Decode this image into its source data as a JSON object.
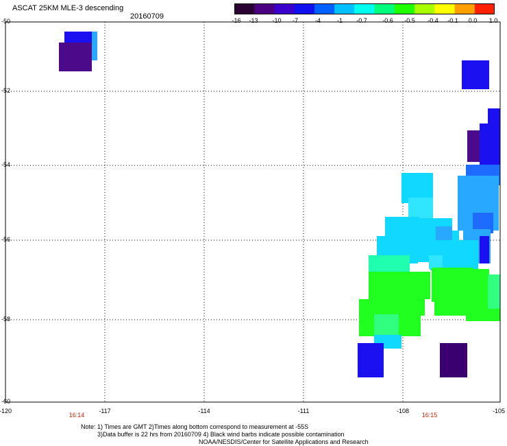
{
  "header": {
    "title": "ASCAT 25KM MLE-3 descending",
    "date": "20160709"
  },
  "colorbar": {
    "tick_labels": [
      "-16",
      "-13",
      "-10",
      "-7",
      "-4",
      "-1",
      "-0.7",
      "-0.6",
      "-0.5",
      "-0.4",
      "-0.1",
      "0.0",
      "1.0"
    ],
    "colors": [
      "#2a0033",
      "#4b0082",
      "#3a00cc",
      "#1010ee",
      "#0060ff",
      "#00c0ff",
      "#00ffee",
      "#00ff7a",
      "#20ff00",
      "#a8ff00",
      "#ffff00",
      "#ffa000",
      "#ff2000"
    ]
  },
  "axes": {
    "lat_labels": [
      "-50",
      "-52",
      "-54",
      "-56",
      "-58",
      "-60"
    ],
    "lon_labels": [
      "-120",
      "-117",
      "-114",
      "-111",
      "-108",
      "-105"
    ],
    "time_labels": [
      "16:14",
      "16:15"
    ]
  },
  "swath_colors": {
    "indigo": "#4a0a8a",
    "dark_indigo": "#3b0070",
    "blue": "#1a10f0",
    "mid_blue": "#1e6bff",
    "light_blue": "#28a8ff",
    "cyan": "#10d8ff",
    "pale_cyan": "#30e6ff",
    "aqua_green": "#20ffb0",
    "green": "#20ff20",
    "mint": "#30ff80"
  },
  "notes": {
    "line1": "Note: 1) Times are GMT 2)Times along bottom correspond to measurement at -55S",
    "line2": "3)Data buffer is 22 hrs from 20160709 4) Black wind barbs indicate possible contamination",
    "credit": "NOAA/NESDIS/Center for Satellite Applications and Research"
  }
}
